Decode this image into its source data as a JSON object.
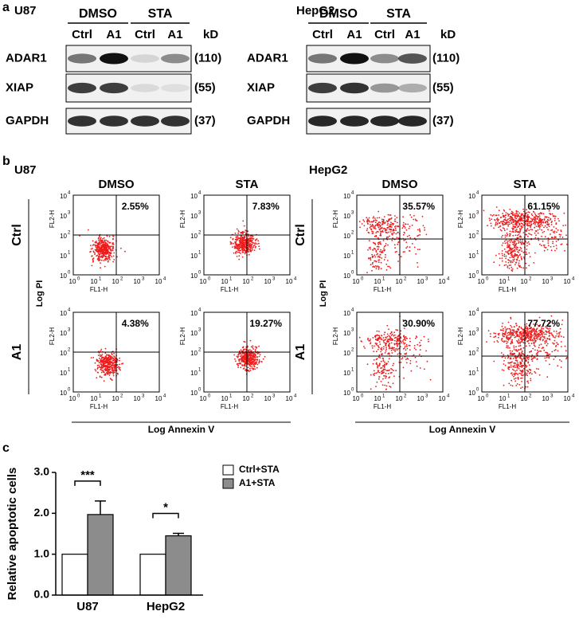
{
  "panel_a": {
    "label": "a",
    "blots": [
      {
        "cell": "U87",
        "unit": "kD",
        "groups": [
          "DMSO",
          "STA"
        ],
        "lanes": [
          "Ctrl",
          "A1",
          "Ctrl",
          "A1"
        ],
        "rows": [
          {
            "protein": "ADAR1",
            "size": "(110)"
          },
          {
            "protein": "XIAP",
            "size": "(55)"
          },
          {
            "protein": "GAPDH",
            "size": "(37)"
          }
        ]
      },
      {
        "cell": "HepG2",
        "unit": "kD",
        "groups": [
          "DMSO",
          "STA"
        ],
        "lanes": [
          "Ctrl",
          "A1",
          "Ctrl",
          "A1"
        ],
        "rows": [
          {
            "protein": "ADAR1",
            "size": "(110)"
          },
          {
            "protein": "XIAP",
            "size": "(55)"
          },
          {
            "protein": "GAPDH",
            "size": "(37)"
          }
        ]
      }
    ]
  },
  "panel_b": {
    "label": "b",
    "groups": [
      {
        "cell": "U87",
        "y_label": "Log PI",
        "x_label": "Log Annexin V",
        "y_channel": "FL2-H",
        "x_channel": "FL1-H",
        "tick_base": "10",
        "tick_exponents": [
          "0",
          "1",
          "2",
          "3",
          "4"
        ],
        "columns": [
          "DMSO",
          "STA"
        ],
        "rows": [
          {
            "name": "Ctrl",
            "percentages": [
              "2.55%",
              "7.83%"
            ]
          },
          {
            "name": "A1",
            "percentages": [
              "4.38%",
              "19.27%"
            ]
          }
        ]
      },
      {
        "cell": "HepG2",
        "y_label": "Log PI",
        "x_label": "Log Annexin V",
        "y_channel": "FL2-H",
        "x_channel": "FL1-H",
        "tick_base": "10",
        "tick_exponents": [
          "0",
          "1",
          "2",
          "3",
          "4"
        ],
        "columns": [
          "DMSO",
          "STA"
        ],
        "rows": [
          {
            "name": "Ctrl",
            "percentages": [
              "35.57%",
              "61.15%"
            ]
          },
          {
            "name": "A1",
            "percentages": [
              "30.90%",
              "77.72%"
            ]
          }
        ]
      }
    ]
  },
  "chart_data": {
    "panel_label": "c",
    "type": "bar",
    "ylabel": "Relative apoptotic cells",
    "categories": [
      "U87",
      "HepG2"
    ],
    "series": [
      {
        "name": "Ctrl+STA",
        "color": "#ffffff",
        "values": [
          1.0,
          1.0
        ]
      },
      {
        "name": "A1+STA",
        "color": "#8c8c8c",
        "values": [
          1.97,
          1.45
        ],
        "errors": [
          0.33,
          0.06
        ]
      }
    ],
    "annotations": [
      "***",
      "*"
    ],
    "ylim": [
      0,
      3
    ],
    "yticks": [
      {
        "value": 0,
        "label": "0.0"
      },
      {
        "value": 1,
        "label": "1.0"
      },
      {
        "value": 2,
        "label": "2.0"
      },
      {
        "value": 3,
        "label": "3.0"
      }
    ]
  }
}
